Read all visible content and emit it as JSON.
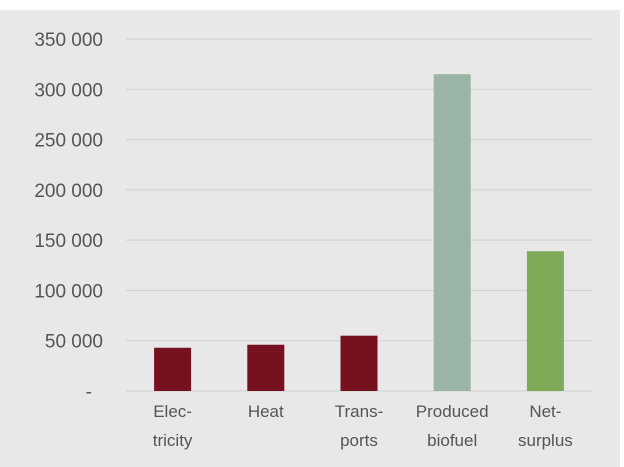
{
  "chart_data": {
    "type": "bar",
    "categories": [
      [
        "Elec-",
        "tricity"
      ],
      [
        "Heat"
      ],
      [
        "Trans-",
        "ports"
      ],
      [
        "Produced",
        "biofuel"
      ],
      [
        "Net-",
        "surplus"
      ]
    ],
    "values": [
      43000,
      46000,
      55000,
      315000,
      139000
    ],
    "bar_colors": [
      "#76111f",
      "#76111f",
      "#76111f",
      "#9ab5a5",
      "#7fab59"
    ],
    "y_ticks": [
      {
        "value": 0,
        "label": "-"
      },
      {
        "value": 50000,
        "label": "50 000"
      },
      {
        "value": 100000,
        "label": "100 000"
      },
      {
        "value": 150000,
        "label": "150 000"
      },
      {
        "value": 200000,
        "label": "200 000"
      },
      {
        "value": 250000,
        "label": "250 000"
      },
      {
        "value": 300000,
        "label": "300 000"
      },
      {
        "value": 350000,
        "label": "350 000"
      }
    ],
    "ylim": [
      0,
      350000
    ],
    "grid": true,
    "title": "",
    "xlabel": "",
    "ylabel": ""
  }
}
